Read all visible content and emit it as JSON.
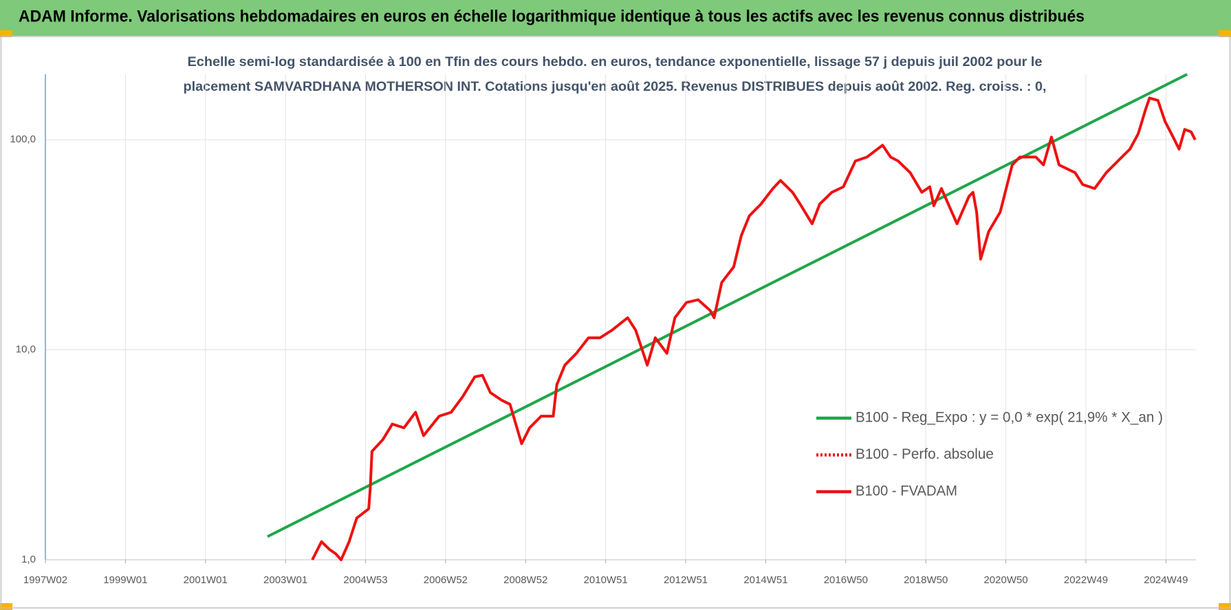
{
  "chart_data": {
    "type": "line",
    "title": "ADAM Informe. Valorisations hebdomadaires en euros en échelle logarithmique identique à tous les actifs avec les revenus connus distribués",
    "subtitle": [
      "Echelle semi-log standardisée à 100 en Tfin des cours hebdo. en euros, tendance exponentielle, lissage 57 j depuis juil 2002 pour le",
      "placement SAMVARDHANA MOTHERSON INT. Cotations jusqu'en août 2025. Revenus DISTRIBUES depuis août 2002. Reg. croiss. : 0,"
    ],
    "log_y": true,
    "grid": true,
    "legend": "right",
    "xlim": [
      1997.0,
      2025.75
    ],
    "xticks": [
      {
        "value": 1997,
        "label": "1997W02"
      },
      {
        "value": 1999,
        "label": "1999W01"
      },
      {
        "value": 2001,
        "label": "2001W01"
      },
      {
        "value": 2003,
        "label": "2003W01"
      },
      {
        "value": 2005,
        "label": "2004W53"
      },
      {
        "value": 2007,
        "label": "2006W52"
      },
      {
        "value": 2009,
        "label": "2008W52"
      },
      {
        "value": 2011,
        "label": "2010W51"
      },
      {
        "value": 2013,
        "label": "2012W51"
      },
      {
        "value": 2015,
        "label": "2014W51"
      },
      {
        "value": 2017,
        "label": "2016W50"
      },
      {
        "value": 2019,
        "label": "2018W50"
      },
      {
        "value": 2021,
        "label": "2020W50"
      },
      {
        "value": 2023,
        "label": "2022W49"
      },
      {
        "value": 2025,
        "label": "2024W49"
      }
    ],
    "ylim": [
      1,
      205
    ],
    "yticks": [
      {
        "value": 1,
        "label": "1,0"
      },
      {
        "value": 10,
        "label": "10,0"
      },
      {
        "value": 100,
        "label": "100,0"
      }
    ],
    "series": [
      {
        "name": "B100 - Reg_Expo : y = 0,0 * exp( 21,9% *  X_an )",
        "color": "#1fa64a",
        "style": "solid",
        "x": [
          2002.55,
          2025.53
        ],
        "values": [
          1.29,
          205
        ]
      },
      {
        "name": "B100 - Perfo. absolue",
        "color": "#e3161b",
        "style": "dotted",
        "x": [],
        "values": []
      },
      {
        "name": "B100 - FVADAM",
        "color": "#ee1111",
        "style": "solid",
        "x": [
          2003.67,
          2003.9,
          2004.1,
          2004.25,
          2004.39,
          2004.59,
          2004.78,
          2005.08,
          2005.12,
          2005.16,
          2005.43,
          2005.67,
          2005.96,
          2006.25,
          2006.45,
          2006.84,
          2007.14,
          2007.43,
          2007.73,
          2007.92,
          2008.12,
          2008.41,
          2008.61,
          2008.9,
          2009.1,
          2009.39,
          2009.69,
          2009.78,
          2009.98,
          2010.27,
          2010.57,
          2010.86,
          2011.16,
          2011.55,
          2011.75,
          2012.04,
          2012.24,
          2012.53,
          2012.73,
          2013.02,
          2013.31,
          2013.61,
          2013.71,
          2013.9,
          2014.2,
          2014.39,
          2014.59,
          2014.88,
          2015.18,
          2015.37,
          2015.67,
          2015.86,
          2016.16,
          2016.35,
          2016.65,
          2016.94,
          2017.24,
          2017.53,
          2017.92,
          2018.12,
          2018.31,
          2018.61,
          2018.9,
          2019.1,
          2019.2,
          2019.39,
          2019.78,
          2020.08,
          2020.18,
          2020.27,
          2020.37,
          2020.57,
          2020.86,
          2021.06,
          2021.16,
          2021.35,
          2021.75,
          2021.94,
          2022.14,
          2022.33,
          2022.73,
          2022.92,
          2023.22,
          2023.51,
          2023.8,
          2024.1,
          2024.31,
          2024.49,
          2024.59,
          2024.8,
          2024.98,
          2025.18,
          2025.33,
          2025.47,
          2025.63,
          2025.73
        ],
        "values": [
          1.0,
          1.22,
          1.12,
          1.07,
          1.0,
          1.22,
          1.58,
          1.75,
          2.23,
          3.28,
          3.73,
          4.43,
          4.25,
          5.04,
          3.9,
          4.83,
          5.04,
          5.99,
          7.43,
          7.56,
          6.25,
          5.74,
          5.5,
          3.57,
          4.25,
          4.83,
          4.83,
          6.82,
          8.45,
          9.62,
          11.4,
          11.4,
          12.4,
          14.2,
          12.4,
          8.45,
          11.4,
          9.62,
          14.2,
          16.8,
          17.3,
          15.4,
          14.2,
          20.9,
          24.8,
          35.0,
          43.4,
          49.4,
          58.6,
          64.0,
          56.2,
          49.4,
          39.8,
          49.4,
          56.2,
          59.7,
          79.2,
          82.7,
          94.2,
          82.7,
          79.2,
          69.7,
          56.2,
          59.7,
          48.5,
          58.6,
          39.8,
          53.8,
          56.2,
          45.3,
          27.0,
          36.5,
          45.3,
          64.0,
          75.9,
          82.7,
          82.7,
          75.9,
          103,
          75.9,
          69.7,
          61.2,
          58.6,
          69.7,
          79.2,
          90.2,
          107,
          139,
          158,
          154,
          122,
          103,
          90.2,
          112,
          109,
          100
        ]
      }
    ]
  }
}
